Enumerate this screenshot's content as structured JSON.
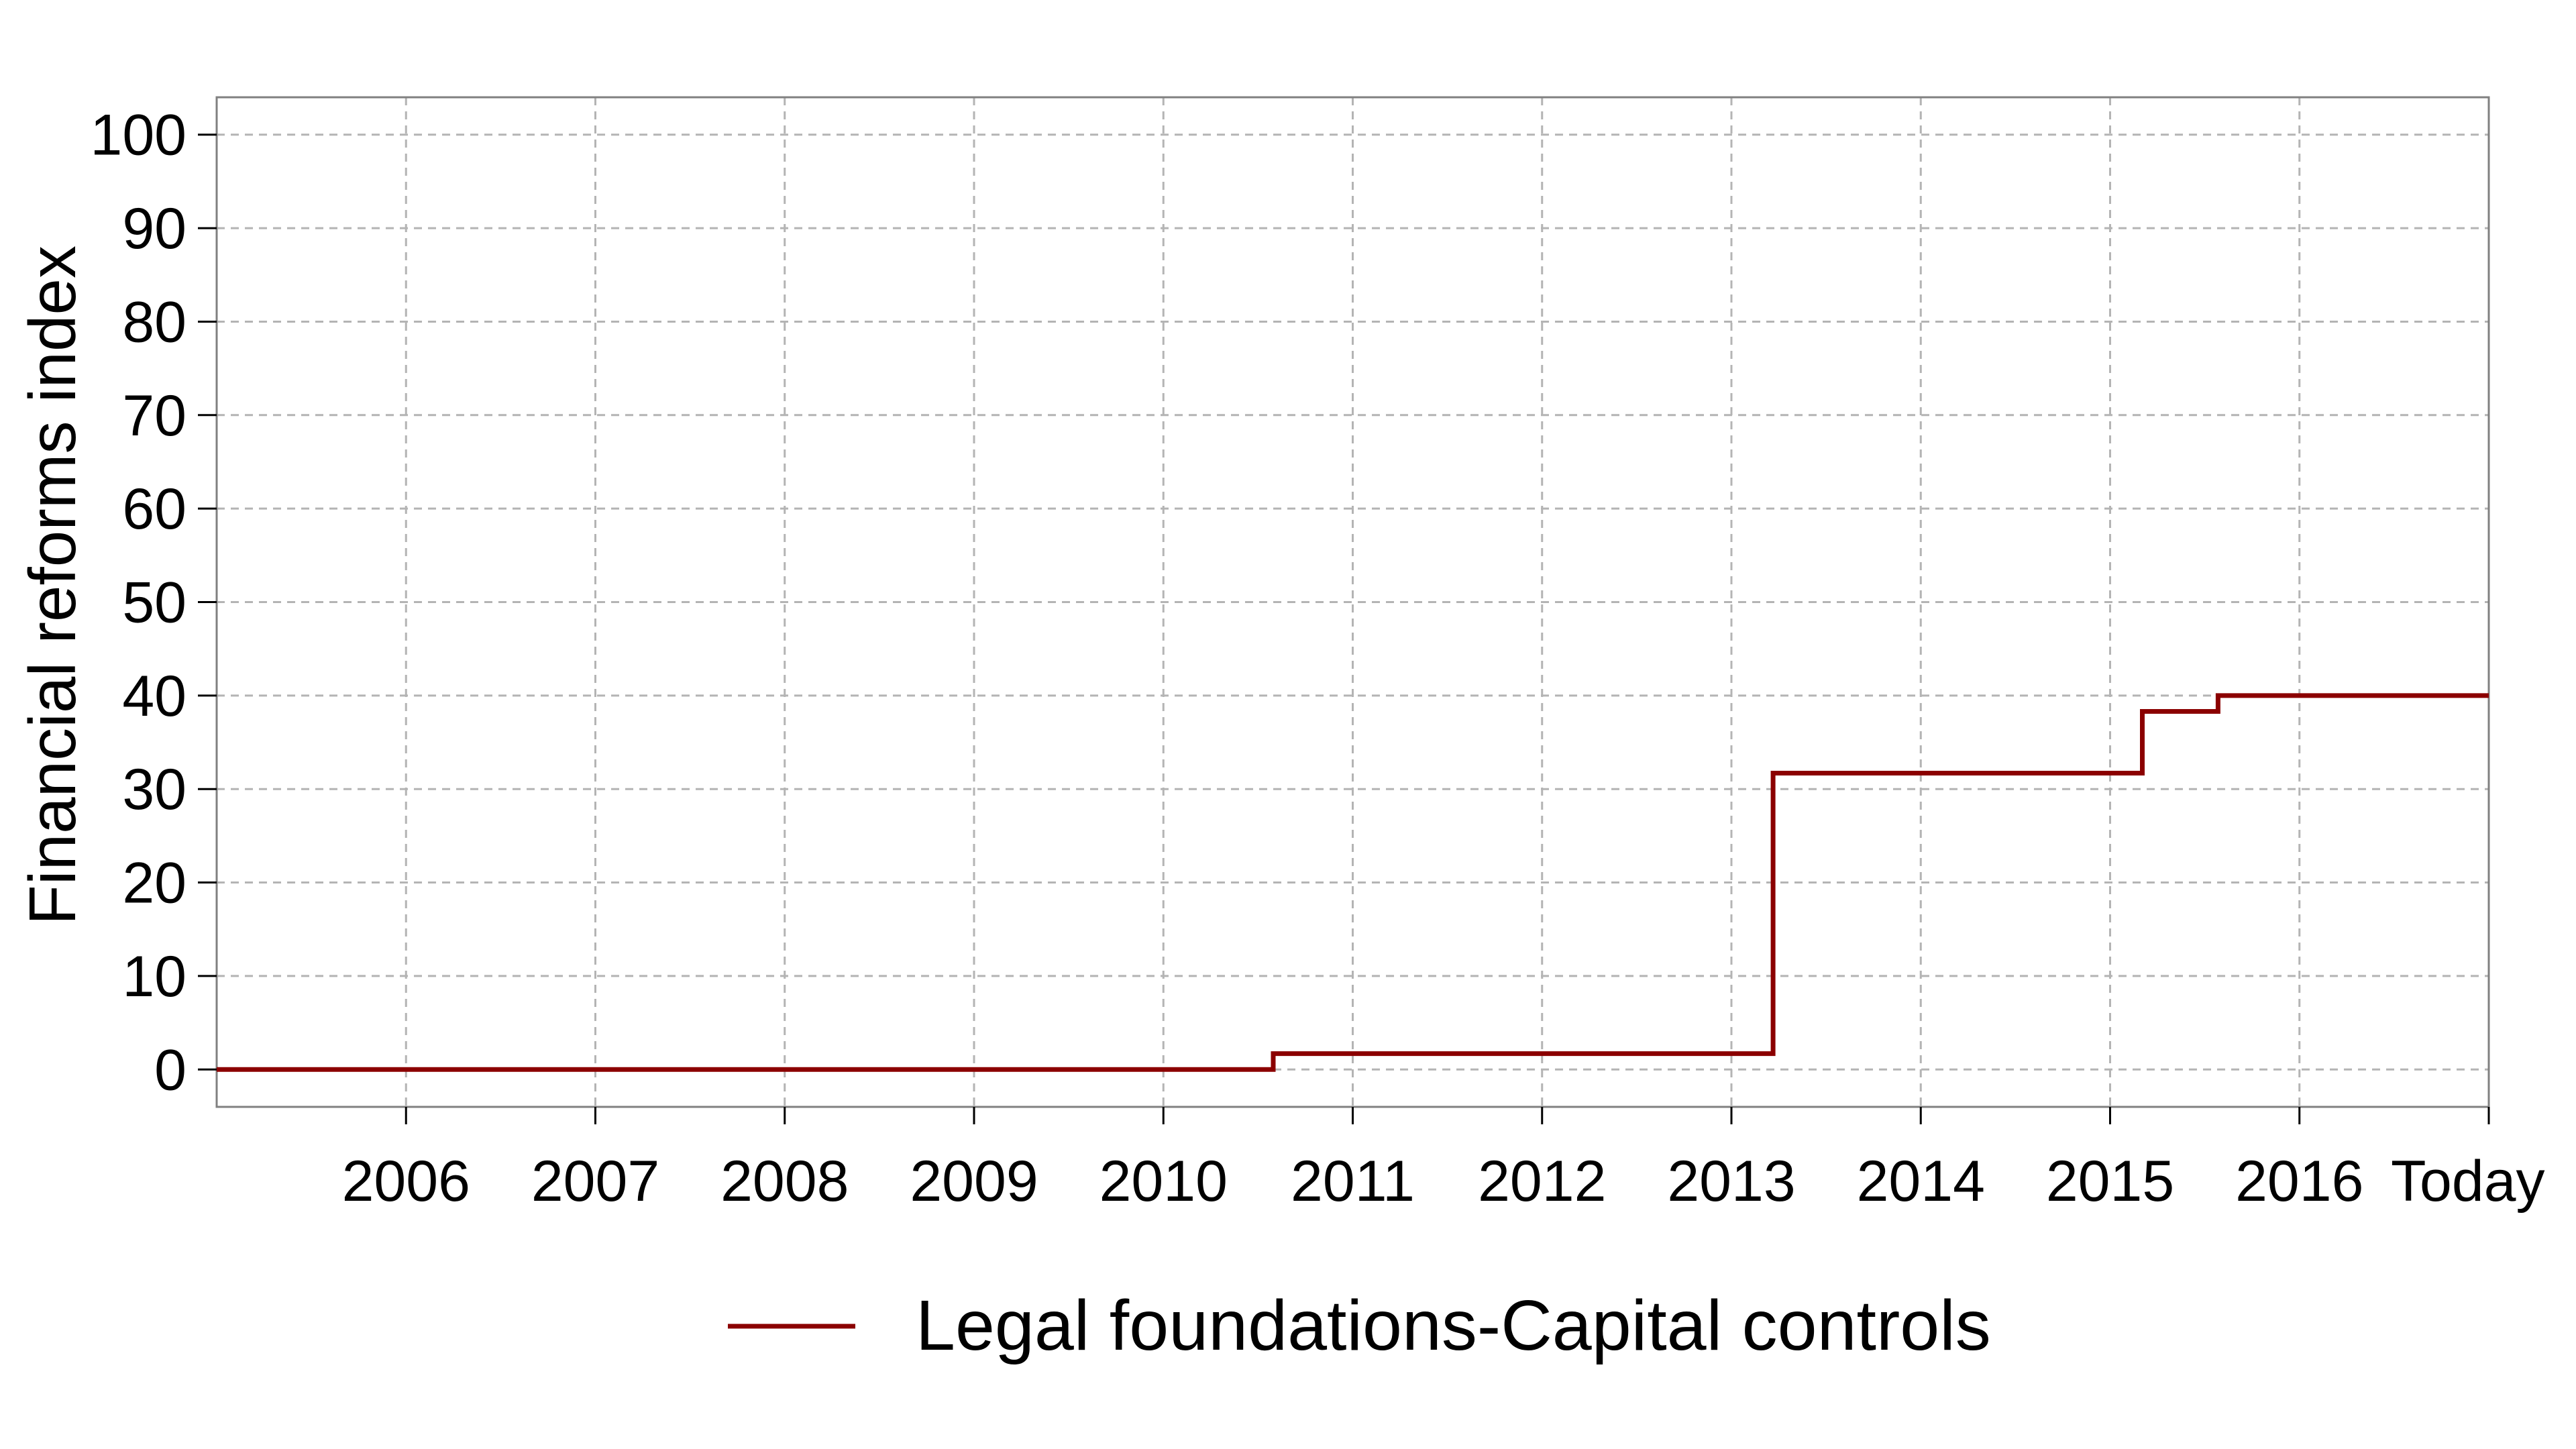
{
  "chart_data": {
    "type": "line",
    "step": true,
    "title": "",
    "xlabel": "",
    "ylabel": "Financial reforms index",
    "x_ticks": [
      "2006",
      "2007",
      "2008",
      "2009",
      "2010",
      "2011",
      "2012",
      "2013",
      "2014",
      "2015",
      "2016",
      "Today"
    ],
    "y_ticks": [
      0,
      10,
      20,
      30,
      40,
      50,
      60,
      70,
      80,
      90,
      100
    ],
    "xlim": [
      2005.0,
      2017.0
    ],
    "ylim": [
      -4,
      104
    ],
    "grid": true,
    "legend_position": "bottom",
    "series": [
      {
        "name": "Legal foundations-Capital controls",
        "color": "#8B0000",
        "points": [
          {
            "x": 2005.0,
            "y": 0
          },
          {
            "x": 2010.58,
            "y": 0
          },
          {
            "x": 2010.58,
            "y": 1.7
          },
          {
            "x": 2013.22,
            "y": 1.7
          },
          {
            "x": 2013.22,
            "y": 31.7
          },
          {
            "x": 2015.17,
            "y": 31.7
          },
          {
            "x": 2015.17,
            "y": 38.3
          },
          {
            "x": 2015.57,
            "y": 38.3
          },
          {
            "x": 2015.57,
            "y": 40
          },
          {
            "x": 2017.0,
            "y": 40
          }
        ]
      }
    ]
  }
}
